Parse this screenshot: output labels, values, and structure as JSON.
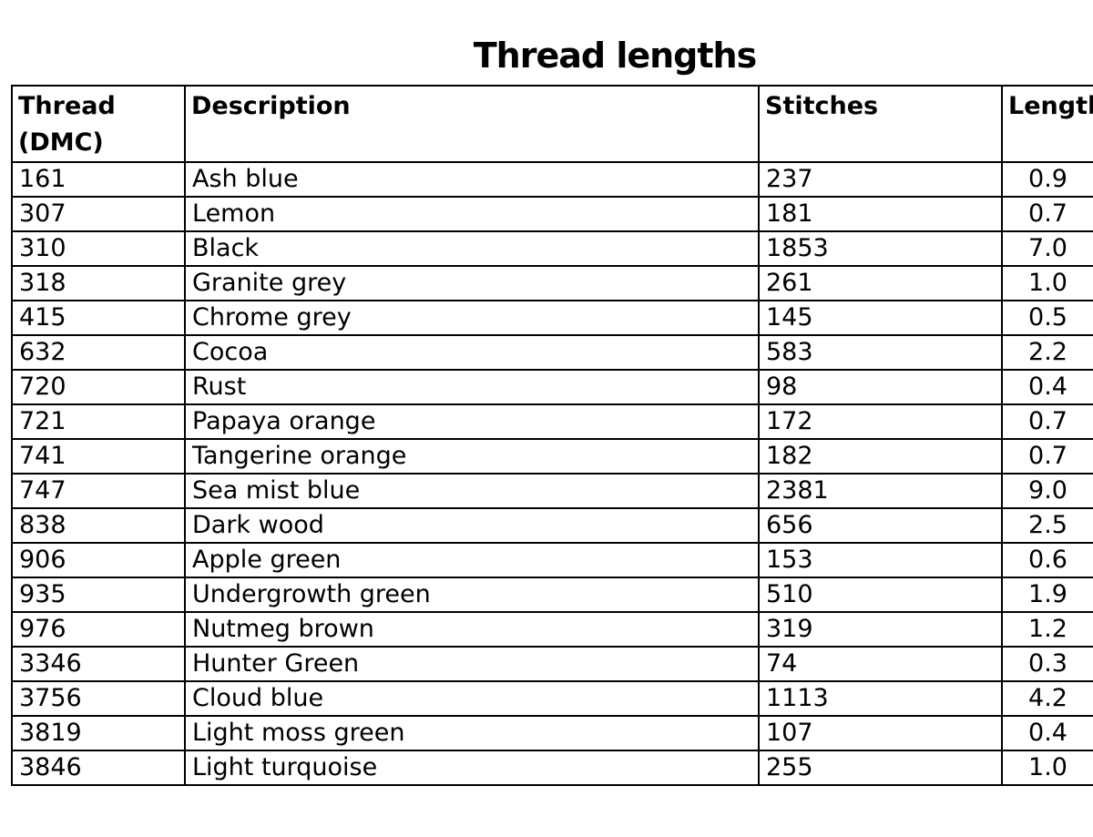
{
  "title": "Thread lengths",
  "colors": {
    "text": "#000000",
    "border": "#000000",
    "background": "#ffffff"
  },
  "table": {
    "columns": [
      "Thread (DMC)",
      "Description",
      "Stitches",
      "Length (m)"
    ],
    "rows": [
      [
        "161",
        "Ash blue",
        "237",
        "0.9"
      ],
      [
        "307",
        "Lemon",
        "181",
        "0.7"
      ],
      [
        "310",
        "Black",
        "1853",
        "7.0"
      ],
      [
        "318",
        "Granite grey",
        "261",
        "1.0"
      ],
      [
        "415",
        "Chrome grey",
        "145",
        "0.5"
      ],
      [
        "632",
        "Cocoa",
        "583",
        "2.2"
      ],
      [
        "720",
        "Rust",
        "98",
        "0.4"
      ],
      [
        "721",
        "Papaya orange",
        "172",
        "0.7"
      ],
      [
        "741",
        "Tangerine orange",
        "182",
        "0.7"
      ],
      [
        "747",
        "Sea mist blue",
        "2381",
        "9.0"
      ],
      [
        "838",
        "Dark wood",
        "656",
        "2.5"
      ],
      [
        "906",
        "Apple green",
        "153",
        "0.6"
      ],
      [
        "935",
        "Undergrowth green",
        "510",
        "1.9"
      ],
      [
        "976",
        "Nutmeg brown",
        "319",
        "1.2"
      ],
      [
        "3346",
        "Hunter Green",
        "74",
        "0.3"
      ],
      [
        "3756",
        "Cloud blue",
        "1113",
        "4.2"
      ],
      [
        "3819",
        "Light moss green",
        "107",
        "0.4"
      ],
      [
        "3846",
        "Light turquoise",
        "255",
        "1.0"
      ]
    ]
  }
}
